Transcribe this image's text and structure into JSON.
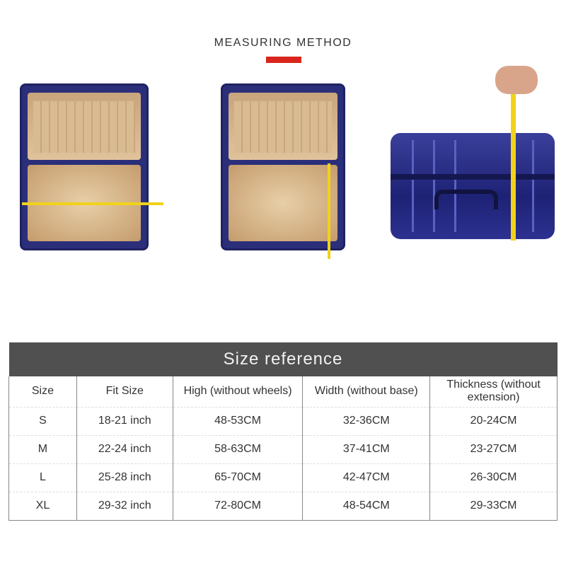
{
  "header": {
    "title": "MEASURING METHOD",
    "accent_color": "#d9261c"
  },
  "photos": [
    {
      "name": "open-suitcase-measuring-width"
    },
    {
      "name": "open-suitcase-measuring-height"
    },
    {
      "name": "closed-suitcase-measuring-thickness"
    }
  ],
  "size_table": {
    "title": "Size reference",
    "columns": [
      "Size",
      "Fit Size",
      "High (without wheels)",
      "Width (without base)",
      "Thickness (without extension)"
    ],
    "rows": [
      [
        "S",
        "18-21 inch",
        "48-53CM",
        "32-36CM",
        "20-24CM"
      ],
      [
        "M",
        "22-24 inch",
        "58-63CM",
        "37-41CM",
        "23-27CM"
      ],
      [
        "L",
        "25-28 inch",
        "65-70CM",
        "42-47CM",
        "26-30CM"
      ],
      [
        "XL",
        "29-32 inch",
        "72-80CM",
        "48-54CM",
        "29-33CM"
      ]
    ]
  }
}
